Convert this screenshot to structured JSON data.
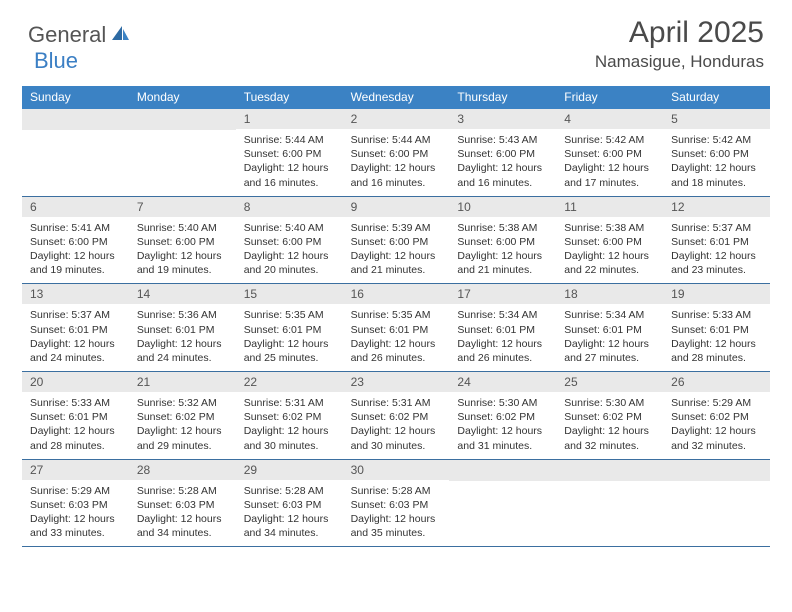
{
  "brand": {
    "general": "General",
    "blue": "Blue"
  },
  "title": "April 2025",
  "location": "Namasigue, Honduras",
  "colors": {
    "header_bg": "#3b82c4",
    "row_border": "#3b6fa0",
    "daynum_bg": "#e9e9e9",
    "logo_blue": "#3b7fc4"
  },
  "dow": [
    "Sunday",
    "Monday",
    "Tuesday",
    "Wednesday",
    "Thursday",
    "Friday",
    "Saturday"
  ],
  "weeks": [
    [
      null,
      null,
      {
        "n": "1",
        "sr": "5:44 AM",
        "ss": "6:00 PM",
        "dl": "12 hours and 16 minutes."
      },
      {
        "n": "2",
        "sr": "5:44 AM",
        "ss": "6:00 PM",
        "dl": "12 hours and 16 minutes."
      },
      {
        "n": "3",
        "sr": "5:43 AM",
        "ss": "6:00 PM",
        "dl": "12 hours and 16 minutes."
      },
      {
        "n": "4",
        "sr": "5:42 AM",
        "ss": "6:00 PM",
        "dl": "12 hours and 17 minutes."
      },
      {
        "n": "5",
        "sr": "5:42 AM",
        "ss": "6:00 PM",
        "dl": "12 hours and 18 minutes."
      }
    ],
    [
      {
        "n": "6",
        "sr": "5:41 AM",
        "ss": "6:00 PM",
        "dl": "12 hours and 19 minutes."
      },
      {
        "n": "7",
        "sr": "5:40 AM",
        "ss": "6:00 PM",
        "dl": "12 hours and 19 minutes."
      },
      {
        "n": "8",
        "sr": "5:40 AM",
        "ss": "6:00 PM",
        "dl": "12 hours and 20 minutes."
      },
      {
        "n": "9",
        "sr": "5:39 AM",
        "ss": "6:00 PM",
        "dl": "12 hours and 21 minutes."
      },
      {
        "n": "10",
        "sr": "5:38 AM",
        "ss": "6:00 PM",
        "dl": "12 hours and 21 minutes."
      },
      {
        "n": "11",
        "sr": "5:38 AM",
        "ss": "6:00 PM",
        "dl": "12 hours and 22 minutes."
      },
      {
        "n": "12",
        "sr": "5:37 AM",
        "ss": "6:01 PM",
        "dl": "12 hours and 23 minutes."
      }
    ],
    [
      {
        "n": "13",
        "sr": "5:37 AM",
        "ss": "6:01 PM",
        "dl": "12 hours and 24 minutes."
      },
      {
        "n": "14",
        "sr": "5:36 AM",
        "ss": "6:01 PM",
        "dl": "12 hours and 24 minutes."
      },
      {
        "n": "15",
        "sr": "5:35 AM",
        "ss": "6:01 PM",
        "dl": "12 hours and 25 minutes."
      },
      {
        "n": "16",
        "sr": "5:35 AM",
        "ss": "6:01 PM",
        "dl": "12 hours and 26 minutes."
      },
      {
        "n": "17",
        "sr": "5:34 AM",
        "ss": "6:01 PM",
        "dl": "12 hours and 26 minutes."
      },
      {
        "n": "18",
        "sr": "5:34 AM",
        "ss": "6:01 PM",
        "dl": "12 hours and 27 minutes."
      },
      {
        "n": "19",
        "sr": "5:33 AM",
        "ss": "6:01 PM",
        "dl": "12 hours and 28 minutes."
      }
    ],
    [
      {
        "n": "20",
        "sr": "5:33 AM",
        "ss": "6:01 PM",
        "dl": "12 hours and 28 minutes."
      },
      {
        "n": "21",
        "sr": "5:32 AM",
        "ss": "6:02 PM",
        "dl": "12 hours and 29 minutes."
      },
      {
        "n": "22",
        "sr": "5:31 AM",
        "ss": "6:02 PM",
        "dl": "12 hours and 30 minutes."
      },
      {
        "n": "23",
        "sr": "5:31 AM",
        "ss": "6:02 PM",
        "dl": "12 hours and 30 minutes."
      },
      {
        "n": "24",
        "sr": "5:30 AM",
        "ss": "6:02 PM",
        "dl": "12 hours and 31 minutes."
      },
      {
        "n": "25",
        "sr": "5:30 AM",
        "ss": "6:02 PM",
        "dl": "12 hours and 32 minutes."
      },
      {
        "n": "26",
        "sr": "5:29 AM",
        "ss": "6:02 PM",
        "dl": "12 hours and 32 minutes."
      }
    ],
    [
      {
        "n": "27",
        "sr": "5:29 AM",
        "ss": "6:03 PM",
        "dl": "12 hours and 33 minutes."
      },
      {
        "n": "28",
        "sr": "5:28 AM",
        "ss": "6:03 PM",
        "dl": "12 hours and 34 minutes."
      },
      {
        "n": "29",
        "sr": "5:28 AM",
        "ss": "6:03 PM",
        "dl": "12 hours and 34 minutes."
      },
      {
        "n": "30",
        "sr": "5:28 AM",
        "ss": "6:03 PM",
        "dl": "12 hours and 35 minutes."
      },
      null,
      null,
      null
    ]
  ],
  "labels": {
    "sunrise": "Sunrise:",
    "sunset": "Sunset:",
    "daylight": "Daylight:"
  }
}
